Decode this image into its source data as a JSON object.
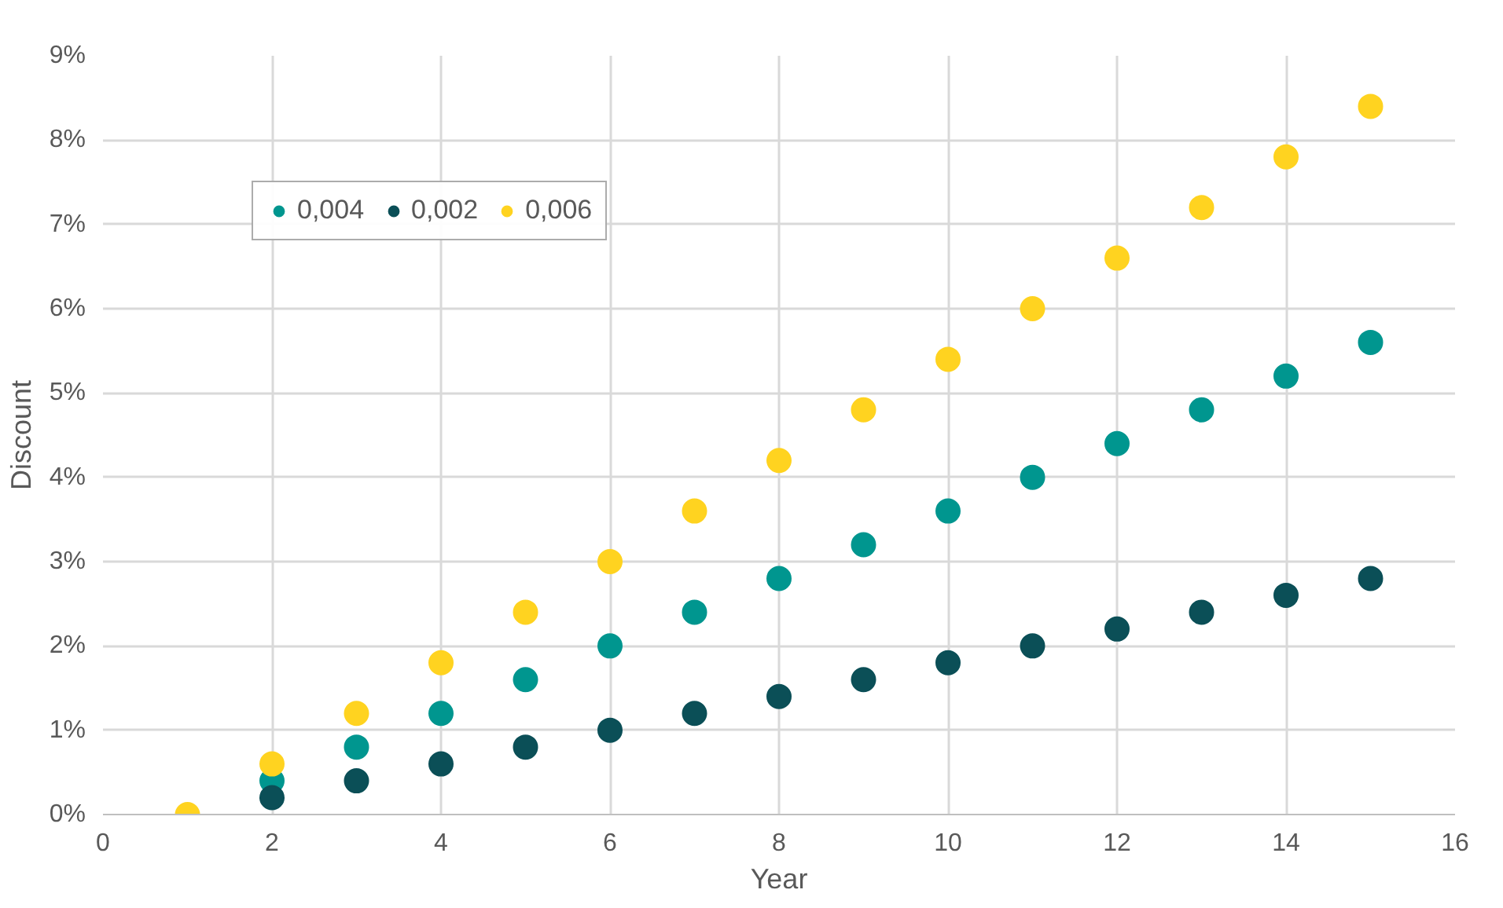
{
  "chart_data": {
    "type": "scatter",
    "xlabel": "Year",
    "ylabel": "Discount",
    "x": [
      1,
      2,
      3,
      4,
      5,
      6,
      7,
      8,
      9,
      10,
      11,
      12,
      13,
      14,
      15
    ],
    "series": [
      {
        "name": "0,004",
        "color": "#00968f",
        "values": [
          null,
          0.4,
          0.8,
          1.2,
          1.6,
          2.0,
          2.4,
          2.8,
          3.2,
          3.6,
          4.0,
          4.4,
          4.8,
          5.2,
          5.6
        ]
      },
      {
        "name": "0,002",
        "color": "#0b4f57",
        "values": [
          null,
          0.2,
          0.4,
          0.6,
          0.8,
          1.0,
          1.2,
          1.4,
          1.6,
          1.8,
          2.0,
          2.2,
          2.4,
          2.6,
          2.8
        ]
      },
      {
        "name": "0,006",
        "color": "#ffd320",
        "values": [
          0,
          0.6,
          1.2,
          1.8,
          2.4,
          3.0,
          3.6,
          4.2,
          4.8,
          5.4,
          6.0,
          6.6,
          7.2,
          7.8,
          8.4
        ]
      }
    ],
    "xlim": [
      0,
      16
    ],
    "xticks": [
      0,
      2,
      4,
      6,
      8,
      10,
      12,
      14,
      16
    ],
    "ylim": [
      0,
      9
    ],
    "yticks": [
      {
        "value": 0,
        "label": "0%"
      },
      {
        "value": 1,
        "label": "1%"
      },
      {
        "value": 2,
        "label": "2%"
      },
      {
        "value": 3,
        "label": "3%"
      },
      {
        "value": 4,
        "label": "4%"
      },
      {
        "value": 5,
        "label": "5%"
      },
      {
        "value": 6,
        "label": "6%"
      },
      {
        "value": 7,
        "label": "7%"
      },
      {
        "value": 8,
        "label": "8%"
      },
      {
        "value": 9,
        "label": "9%"
      }
    ],
    "grid": true,
    "legend": "top left",
    "marker": "circle"
  }
}
